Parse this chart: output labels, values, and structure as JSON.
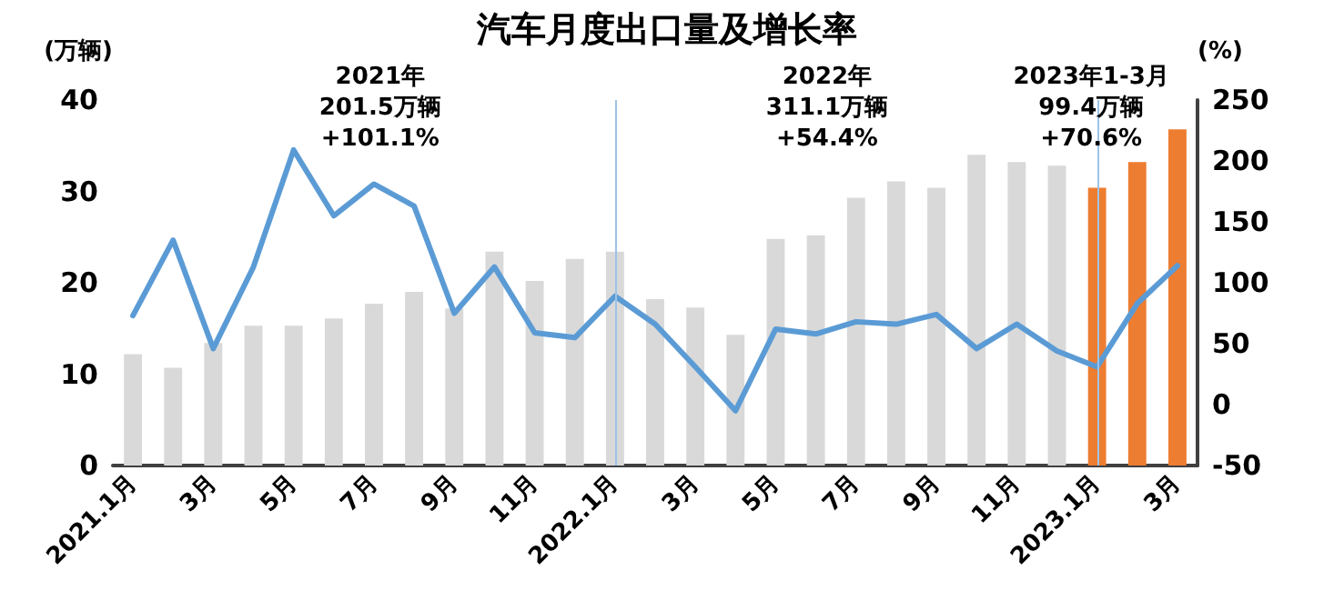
{
  "chart_data": {
    "type": "bar",
    "title": "汽车月度出口量及增长率",
    "ylabel": "(万辆)",
    "y2label": "(%)",
    "categories": [
      "2021.1月",
      null,
      "3月",
      null,
      "5月",
      null,
      "7月",
      null,
      "9月",
      null,
      "11月",
      null,
      "2022.1月",
      null,
      "3月",
      null,
      "5月",
      null,
      "7月",
      null,
      "9月",
      null,
      "11月",
      null,
      "2023.1月",
      null,
      "3月"
    ],
    "series": [
      {
        "colors": [
          "#d9d9d9",
          "#d9d9d9",
          "#d9d9d9",
          "#d9d9d9",
          "#d9d9d9",
          "#d9d9d9",
          "#d9d9d9",
          "#d9d9d9",
          "#d9d9d9",
          "#d9d9d9",
          "#d9d9d9",
          "#d9d9d9",
          "#d9d9d9",
          "#d9d9d9",
          "#d9d9d9",
          "#d9d9d9",
          "#d9d9d9",
          "#d9d9d9",
          "#d9d9d9",
          "#d9d9d9",
          "#d9d9d9",
          "#d9d9d9",
          "#d9d9d9",
          "#d9d9d9",
          "#ed7d31",
          "#ed7d31",
          "#ed7d31"
        ],
        "values": [
          12.2,
          10.7,
          13.4,
          15.3,
          15.3,
          16.1,
          17.7,
          19.0,
          17.2,
          23.4,
          20.2,
          22.6,
          23.4,
          18.2,
          17.3,
          14.3,
          24.8,
          25.2,
          29.3,
          31.1,
          30.4,
          34.0,
          33.2,
          32.8,
          30.4,
          33.2,
          36.8
        ]
      },
      {
        "type": "line",
        "axis": "y2",
        "color": "#5b9bd5",
        "values": [
          73,
          135,
          46,
          113,
          209,
          155,
          181,
          163,
          75,
          113,
          59,
          55,
          89,
          66,
          31,
          -5,
          62,
          58,
          68,
          66,
          74,
          46,
          66,
          44,
          31,
          83,
          114
        ]
      }
    ],
    "ylim": [
      0,
      40
    ],
    "yticks": [
      0,
      10,
      20,
      30,
      40
    ],
    "y2lim": [
      -50,
      250
    ],
    "y2ticks": [
      -50,
      0,
      50,
      100,
      150,
      200,
      250
    ],
    "ref_lines": [
      {
        "axis": "x",
        "value": "2022.1月",
        "color": "#9dc3e6"
      },
      {
        "axis": "x",
        "value": "2023.1月",
        "color": "#9dc3e6"
      }
    ],
    "annotations": [
      "2021年\n201.5万辆\n+101.1%",
      "2022年\n311.1万辆\n+54.4%",
      "2023年1-3月\n99.4万辆\n+70.6%"
    ],
    "grid": false,
    "marker": "none",
    "line_style": "solid"
  }
}
